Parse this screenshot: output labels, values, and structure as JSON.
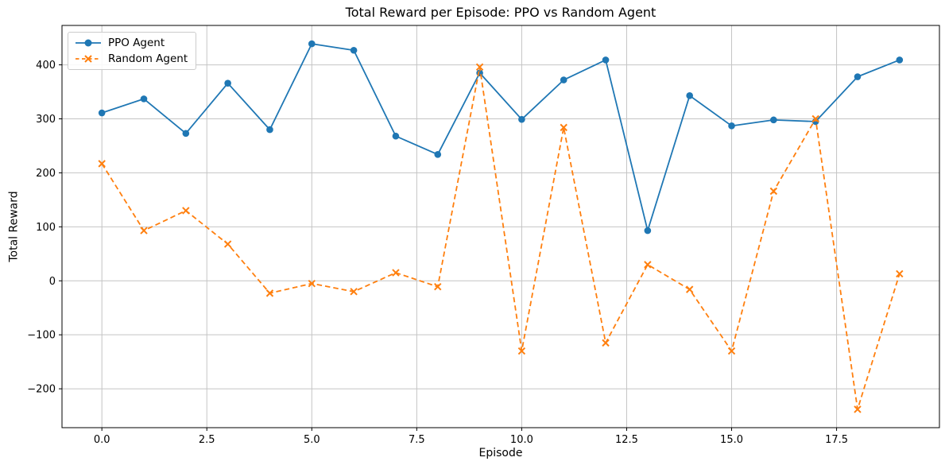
{
  "chart_data": {
    "type": "line",
    "title": "Total Reward per Episode: PPO vs Random Agent",
    "xlabel": "Episode",
    "ylabel": "Total Reward",
    "x": [
      0,
      1,
      2,
      3,
      4,
      5,
      6,
      7,
      8,
      9,
      10,
      11,
      12,
      13,
      14,
      15,
      16,
      17,
      18,
      19
    ],
    "series": [
      {
        "name": "PPO Agent",
        "color": "#1f77b4",
        "marker": "circle",
        "line_style": "solid",
        "values": [
          311,
          337,
          273,
          366,
          280,
          439,
          427,
          268,
          234,
          385,
          299,
          372,
          409,
          93,
          343,
          287,
          298,
          295,
          378,
          409
        ]
      },
      {
        "name": "Random Agent",
        "color": "#ff7f0e",
        "marker": "x",
        "line_style": "dashed",
        "values": [
          217,
          93,
          130,
          68,
          -23,
          -5,
          -20,
          15,
          -11,
          396,
          -130,
          284,
          -115,
          30,
          -16,
          -130,
          166,
          300,
          -238,
          13
        ]
      }
    ],
    "xlim": [
      -0.95,
      19.95
    ],
    "ylim": [
      -272,
      473
    ],
    "xticks": {
      "values": [
        0,
        2.5,
        5,
        7.5,
        10,
        12.5,
        15,
        17.5
      ],
      "labels": [
        "0.0",
        "2.5",
        "5.0",
        "7.5",
        "10.0",
        "12.5",
        "15.0",
        "17.5"
      ]
    },
    "yticks": {
      "values": [
        -200,
        -100,
        0,
        100,
        200,
        300,
        400
      ],
      "labels": [
        "−200",
        "−100",
        "0",
        "100",
        "200",
        "300",
        "400"
      ]
    },
    "grid": true,
    "legend_loc": "upper left"
  },
  "colors": {
    "grid": "#c4c4c4",
    "spine": "#000000",
    "tick_text": "#000000",
    "background": "#ffffff"
  }
}
